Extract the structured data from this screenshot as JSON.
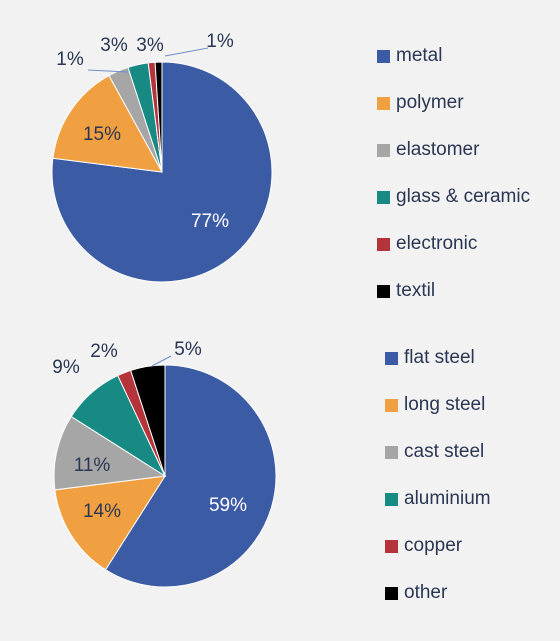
{
  "chart_data": [
    {
      "type": "pie",
      "categories": [
        "metal",
        "polymer",
        "elastomer",
        "glass & ceramic",
        "electronic",
        "textil"
      ],
      "values": [
        77,
        15,
        3,
        3,
        1,
        1
      ],
      "data_labels": [
        "77%",
        "15%",
        "3%",
        "3%",
        "1%",
        "1%"
      ],
      "colors": [
        "#3c5ba5",
        "#f0a041",
        "#a6a6a6",
        "#178a83",
        "#b5343b",
        "#000000"
      ],
      "legend": "right",
      "title": ""
    },
    {
      "type": "pie",
      "categories": [
        "flat steel",
        "long steel",
        "cast steel",
        "aluminium",
        "copper",
        "other"
      ],
      "values": [
        59,
        14,
        11,
        9,
        2,
        5
      ],
      "data_labels": [
        "59%",
        "14%",
        "11%",
        "9%",
        "2%",
        "5%"
      ],
      "colors": [
        "#3c5ba5",
        "#f0a041",
        "#a6a6a6",
        "#178a83",
        "#b5343b",
        "#000000"
      ],
      "legend": "right",
      "title": ""
    }
  ]
}
